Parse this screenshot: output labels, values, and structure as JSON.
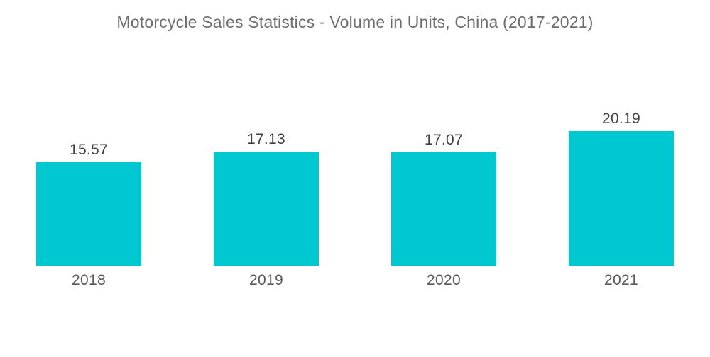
{
  "title": "Motorcycle Sales Statistics - Volume in Units, China (2017-2021)",
  "chart_data": {
    "type": "bar",
    "title": "Motorcycle Sales Statistics - Volume in Units, China (2017-2021)",
    "categories": [
      "2018",
      "2019",
      "2020",
      "2021"
    ],
    "values": [
      15.57,
      17.13,
      17.07,
      20.19
    ],
    "value_labels": [
      "15.57",
      "17.13",
      "17.07",
      "20.19"
    ],
    "xlabel": "",
    "ylabel": "",
    "ylim": [
      0,
      22
    ],
    "grid": false,
    "legend": "none",
    "background": "#FFFFFF",
    "bar_color": "#00C8D1",
    "title_color": "#6E6E6E",
    "value_label_color": "#404040",
    "category_label_color": "#595959"
  }
}
